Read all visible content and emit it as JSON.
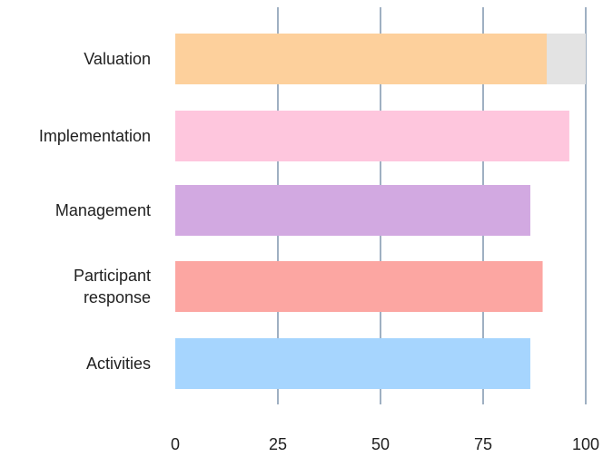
{
  "chart_data": {
    "type": "bar",
    "orientation": "horizontal",
    "title": "",
    "xlabel": "",
    "ylabel": "",
    "xlim": [
      0,
      100
    ],
    "xticks": [
      "0",
      "25",
      "50",
      "75",
      "100"
    ],
    "grid": true,
    "categories": [
      "Valuation",
      "Implementation",
      "Management",
      "Participant response",
      "Activities"
    ],
    "category_lines": [
      [
        "Valuation"
      ],
      [
        "Implementation"
      ],
      [
        "Management"
      ],
      [
        "Participant",
        "response"
      ],
      [
        "Activities"
      ]
    ],
    "values": [
      90.5,
      96,
      86.5,
      89.5,
      86.5
    ],
    "background_track": {
      "category": "Valuation",
      "value": 100,
      "color": "#e3e3e3"
    },
    "colors": [
      "#fdd09c",
      "#fec6dd",
      "#d2a9e1",
      "#fca6a2",
      "#a6d5fe"
    ],
    "grid_color": "#9fb0c2"
  }
}
